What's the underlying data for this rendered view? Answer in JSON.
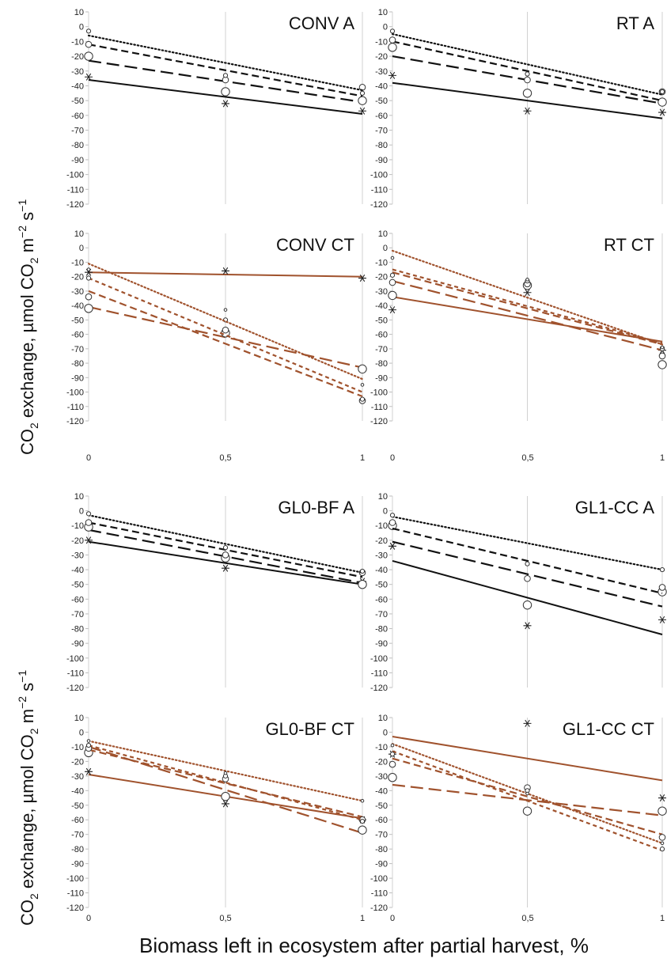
{
  "figure": {
    "ylabel_prefix": "CO",
    "ylabel_sub": "2",
    "ylabel_rest": " exchange, µmol CO",
    "ylabel_sub2": "2",
    "ylabel_mid": " m",
    "ylabel_sup1": "−2",
    "ylabel_s": " s",
    "ylabel_sup2": "−1",
    "xlabel": "Biomass left in ecosystem after partial harvest, %",
    "x_tick_labels_left": [
      "0",
      "0,5",
      "1"
    ],
    "x_tick_labels_right": [
      "0",
      "0,5",
      "1"
    ]
  },
  "colors": {
    "A": "#111111",
    "CT": "#a0522d"
  },
  "chart_data": [
    {
      "type": "scatter",
      "title": "CONV A",
      "color_group": "A",
      "x": [
        0,
        0.5,
        1
      ],
      "ylim": [
        -120,
        10
      ],
      "yticks": [
        10,
        0,
        -10,
        -20,
        -30,
        -40,
        -50,
        -60,
        -70,
        -80,
        -90,
        -100,
        -110,
        -120
      ],
      "series": [
        {
          "style": "solid",
          "marker": "star",
          "points": [
            -34,
            -52,
            -57
          ],
          "fit": [
            -36,
            -59
          ]
        },
        {
          "style": "longdash",
          "marker": "circle-large",
          "points": [
            -20,
            -44,
            -50
          ],
          "fit": [
            -23,
            -51
          ]
        },
        {
          "style": "dash",
          "marker": "circle-medium",
          "points": [
            -12,
            -36,
            -41
          ],
          "fit": [
            -12,
            -47
          ]
        },
        {
          "style": "dotted",
          "marker": "circle-small",
          "points": [
            -3,
            -33,
            -45
          ],
          "fit": [
            -6,
            -43
          ]
        }
      ]
    },
    {
      "type": "scatter",
      "title": "RT A",
      "color_group": "A",
      "x": [
        0,
        0.5,
        1
      ],
      "ylim": [
        -120,
        10
      ],
      "yticks": [
        10,
        0,
        -10,
        -20,
        -30,
        -40,
        -50,
        -60,
        -70,
        -80,
        -90,
        -100,
        -110,
        -120
      ],
      "series": [
        {
          "style": "solid",
          "marker": "star",
          "points": [
            -33,
            -57,
            -58
          ],
          "fit": [
            -38,
            -62
          ]
        },
        {
          "style": "longdash",
          "marker": "circle-large",
          "points": [
            -14,
            -45,
            -51
          ],
          "fit": [
            -20,
            -52
          ]
        },
        {
          "style": "dash",
          "marker": "circle-medium",
          "points": [
            -9,
            -36,
            -44
          ],
          "fit": [
            -10,
            -50
          ]
        },
        {
          "style": "dotted",
          "marker": "circle-small",
          "points": [
            -3,
            -32,
            -44
          ],
          "fit": [
            -5,
            -46
          ]
        }
      ]
    },
    {
      "type": "scatter",
      "title": "CONV CT",
      "color_group": "CT",
      "x": [
        0,
        0.5,
        1
      ],
      "ylim": [
        -120,
        10
      ],
      "yticks": [
        10,
        0,
        -10,
        -20,
        -30,
        -40,
        -50,
        -60,
        -70,
        -80,
        -90,
        -100,
        -110,
        -120
      ],
      "series": [
        {
          "style": "solid",
          "marker": "star",
          "points": [
            -17,
            -16,
            -21
          ],
          "fit": [
            -17,
            -20
          ]
        },
        {
          "style": "longdash",
          "marker": "circle-large",
          "points": [
            -42,
            -59,
            -84
          ],
          "fit": [
            -41,
            -83
          ]
        },
        {
          "style": "dash",
          "marker": "circle-medium",
          "points": [
            -34,
            -57,
            -106
          ],
          "fit": [
            -30,
            -103
          ]
        },
        {
          "style": "shortdash",
          "marker": "circle-small",
          "points": [
            -21,
            -50,
            -105
          ],
          "fit": [
            -21,
            -100
          ]
        },
        {
          "style": "dotted",
          "marker": "circle-tiny",
          "points": [
            -15,
            -43,
            -95
          ],
          "fit": [
            -11,
            -91
          ]
        }
      ]
    },
    {
      "type": "scatter",
      "title": "RT CT",
      "color_group": "CT",
      "x": [
        0,
        0.5,
        1
      ],
      "ylim": [
        -120,
        10
      ],
      "yticks": [
        10,
        0,
        -10,
        -20,
        -30,
        -40,
        -50,
        -60,
        -70,
        -80,
        -90,
        -100,
        -110,
        -120
      ],
      "series": [
        {
          "style": "solid",
          "marker": "star",
          "points": [
            -43,
            -31,
            -71
          ],
          "fit": [
            -34,
            -65
          ]
        },
        {
          "style": "longdash",
          "marker": "circle-large",
          "points": [
            -33,
            -26,
            -81
          ],
          "fit": [
            -23,
            -71
          ]
        },
        {
          "style": "dash",
          "marker": "circle-medium",
          "points": [
            -24,
            -25,
            -75
          ],
          "fit": [
            -17,
            -67
          ]
        },
        {
          "style": "shortdash",
          "marker": "circle-small",
          "points": [
            -19,
            -23,
            -70
          ],
          "fit": [
            -15,
            -66
          ]
        },
        {
          "style": "dotted",
          "marker": "circle-tiny",
          "points": [
            -7,
            -22,
            -69
          ],
          "fit": [
            -2,
            -67
          ]
        }
      ]
    },
    {
      "type": "scatter",
      "title": "GL0-BF A",
      "color_group": "A",
      "x": [
        0,
        0.5,
        1
      ],
      "ylim": [
        -120,
        10
      ],
      "yticks": [
        10,
        0,
        -10,
        -20,
        -30,
        -40,
        -50,
        -60,
        -70,
        -80,
        -90,
        -100,
        -110,
        -120
      ],
      "series": [
        {
          "style": "solid",
          "marker": "star",
          "points": [
            -20,
            -39,
            -48
          ],
          "fit": [
            -21,
            -50
          ]
        },
        {
          "style": "longdash",
          "marker": "circle-large",
          "points": [
            -11,
            -32,
            -50
          ],
          "fit": [
            -13,
            -49
          ]
        },
        {
          "style": "dash",
          "marker": "circle-medium",
          "points": [
            -8,
            -30,
            -42
          ],
          "fit": [
            -8,
            -45
          ]
        },
        {
          "style": "dotted",
          "marker": "circle-small",
          "points": [
            -2,
            -25,
            -41
          ],
          "fit": [
            -3,
            -42
          ]
        }
      ]
    },
    {
      "type": "scatter",
      "title": "GL1-CC A",
      "color_group": "A",
      "x": [
        0,
        0.5,
        1
      ],
      "ylim": [
        -120,
        10
      ],
      "yticks": [
        10,
        0,
        -10,
        -20,
        -30,
        -40,
        -50,
        -60,
        -70,
        -80,
        -90,
        -100,
        -110,
        -120
      ],
      "series": [
        {
          "style": "solid",
          "marker": "star",
          "points": [
            -24,
            -78,
            -74
          ],
          "fit": [
            -34,
            -84
          ]
        },
        {
          "style": "longdash",
          "marker": "circle-large",
          "points": [
            -10,
            -64,
            -55
          ],
          "fit": [
            -21,
            -65
          ]
        },
        {
          "style": "dash",
          "marker": "circle-medium",
          "points": [
            -8,
            -46,
            -52
          ],
          "fit": [
            -12,
            -56
          ]
        },
        {
          "style": "dotted",
          "marker": "circle-small",
          "points": [
            -3,
            -36,
            -40
          ],
          "fit": [
            -4,
            -40
          ]
        }
      ]
    },
    {
      "type": "scatter",
      "title": "GL0-BF CT",
      "color_group": "CT",
      "x": [
        0,
        0.5,
        1
      ],
      "ylim": [
        -120,
        10
      ],
      "yticks": [
        10,
        0,
        -10,
        -20,
        -30,
        -40,
        -50,
        -60,
        -70,
        -80,
        -90,
        -100,
        -110,
        -120
      ],
      "series": [
        {
          "style": "solid",
          "marker": "star",
          "points": [
            -27,
            -49,
            -60
          ],
          "fit": [
            -29,
            -59
          ]
        },
        {
          "style": "longdash",
          "marker": "circle-large",
          "points": [
            -14,
            -44,
            -67
          ],
          "fit": [
            -10,
            -69
          ]
        },
        {
          "style": "dash",
          "marker": "circle-medium",
          "points": [
            -11,
            -32,
            -60
          ],
          "fit": [
            -12,
            -58
          ]
        },
        {
          "style": "shortdash",
          "marker": "circle-small",
          "points": [
            -9,
            -30,
            -61
          ],
          "fit": [
            -9,
            -60
          ]
        },
        {
          "style": "dotted",
          "marker": "circle-tiny",
          "points": [
            -6,
            -28,
            -47
          ],
          "fit": [
            -6,
            -47
          ]
        }
      ]
    },
    {
      "type": "scatter",
      "title": "GL1-CC CT",
      "color_group": "CT",
      "x": [
        0,
        0.5,
        1
      ],
      "ylim": [
        -120,
        10
      ],
      "yticks": [
        10,
        0,
        -10,
        -20,
        -30,
        -40,
        -50,
        -60,
        -70,
        -80,
        -90,
        -100,
        -110,
        -120
      ],
      "series": [
        {
          "style": "solid",
          "marker": "star",
          "points": [
            -15,
            6,
            -45
          ],
          "fit": [
            -3,
            -33
          ]
        },
        {
          "style": "longdash",
          "marker": "circle-large",
          "points": [
            -31,
            -54,
            -54
          ],
          "fit": [
            -36,
            -57
          ]
        },
        {
          "style": "dash",
          "marker": "circle-medium",
          "points": [
            -22,
            -38,
            -72
          ],
          "fit": [
            -18,
            -70
          ]
        },
        {
          "style": "shortdash",
          "marker": "circle-small",
          "points": [
            -15,
            -40,
            -80
          ],
          "fit": [
            -13,
            -81
          ]
        },
        {
          "style": "dotted",
          "marker": "circle-tiny",
          "points": [
            -9,
            -42,
            -76
          ],
          "fit": [
            -8,
            -76
          ]
        }
      ]
    }
  ]
}
